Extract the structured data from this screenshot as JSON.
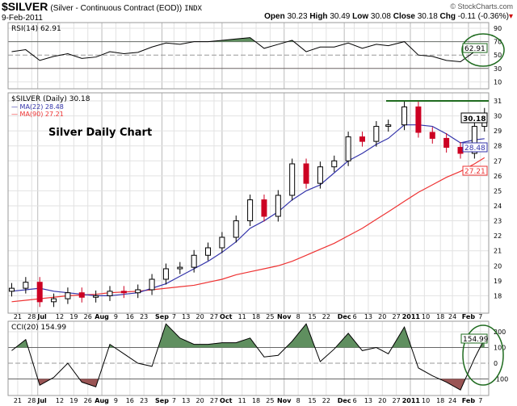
{
  "header": {
    "symbol": "$SILVER",
    "description": "(Silver - Continuous Contract (EOD))",
    "exchange": "INDX",
    "date": "9-Feb-2011",
    "watermark": "© StockCharts.com",
    "open_label": "Open",
    "open": "30.23",
    "high_label": "High",
    "high": "30.49",
    "low_label": "Low",
    "low": "30.08",
    "close_label": "Close",
    "close": "30.18",
    "chg_label": "Chg",
    "chg": "-0.11 (-0.36%)"
  },
  "colors": {
    "up": "#000000",
    "down": "#cc0022",
    "ma22": "#3333aa",
    "ma90": "#ee3333",
    "fill_pos": "#5f8f5f",
    "fill_neg": "#9a5555",
    "annotation": "#1f6b1f"
  },
  "chart_data": [
    {
      "type": "line",
      "title": "RSI(14) 62.91",
      "last_value": "62.91",
      "ylim": [
        0,
        100
      ],
      "yticks": [
        "90",
        "70",
        "50",
        "30",
        "10"
      ],
      "x": [
        "2010-06-18",
        "2010-06-25",
        "2010-07-02",
        "2010-07-09",
        "2010-07-16",
        "2010-07-23",
        "2010-07-30",
        "2010-08-06",
        "2010-08-13",
        "2010-08-20",
        "2010-08-27",
        "2010-09-03",
        "2010-09-10",
        "2010-09-17",
        "2010-09-24",
        "2010-10-01",
        "2010-10-08",
        "2010-10-15",
        "2010-10-22",
        "2010-10-29",
        "2010-11-05",
        "2010-11-12",
        "2010-11-19",
        "2010-11-26",
        "2010-12-03",
        "2010-12-10",
        "2010-12-17",
        "2010-12-23",
        "2010-12-31",
        "2011-01-07",
        "2011-01-14",
        "2011-01-21",
        "2011-01-28",
        "2011-02-04",
        "2011-02-09"
      ],
      "values": [
        55,
        58,
        42,
        48,
        52,
        45,
        47,
        55,
        52,
        54,
        62,
        68,
        66,
        70,
        70,
        72,
        74,
        76,
        60,
        66,
        72,
        55,
        62,
        62,
        68,
        60,
        66,
        64,
        70,
        50,
        48,
        42,
        40,
        55,
        62.91
      ]
    },
    {
      "type": "candlestick",
      "title": "$SILVER (Daily) 30.18",
      "annotation": "Silver Daily Chart",
      "ylim": [
        17,
        31.5
      ],
      "yticks": [
        "31",
        "30",
        "29",
        "28",
        "27",
        "26",
        "25",
        "24",
        "23",
        "22",
        "21",
        "20",
        "19",
        "18"
      ],
      "resistance": 31,
      "x": [
        "2010-06-18",
        "2010-06-25",
        "2010-07-02",
        "2010-07-09",
        "2010-07-16",
        "2010-07-23",
        "2010-07-30",
        "2010-08-06",
        "2010-08-13",
        "2010-08-20",
        "2010-08-27",
        "2010-09-03",
        "2010-09-10",
        "2010-09-17",
        "2010-09-24",
        "2010-10-01",
        "2010-10-08",
        "2010-10-15",
        "2010-10-22",
        "2010-10-29",
        "2010-11-05",
        "2010-11-12",
        "2010-11-19",
        "2010-11-26",
        "2010-12-03",
        "2010-12-10",
        "2010-12-17",
        "2010-12-23",
        "2010-12-31",
        "2011-01-07",
        "2011-01-14",
        "2011-01-21",
        "2011-01-28",
        "2011-02-04",
        "2011-02-09"
      ],
      "close": [
        18.5,
        18.9,
        17.6,
        17.8,
        18.2,
        17.9,
        18.0,
        18.3,
        18.2,
        18.4,
        19.1,
        19.8,
        19.9,
        20.7,
        21.2,
        21.9,
        23.0,
        24.4,
        23.3,
        24.7,
        26.8,
        25.5,
        26.6,
        27.0,
        28.6,
        28.3,
        29.3,
        29.4,
        30.6,
        28.9,
        28.5,
        27.9,
        27.5,
        29.3,
        30.18
      ],
      "series": [
        {
          "name": "MA(22)",
          "last": "28.48",
          "values": [
            18.3,
            18.4,
            18.5,
            18.3,
            18.2,
            18.1,
            18.0,
            18.0,
            18.1,
            18.2,
            18.5,
            18.8,
            19.3,
            19.8,
            20.3,
            20.9,
            21.6,
            22.5,
            23.0,
            23.6,
            24.4,
            25.0,
            25.4,
            26.2,
            27.0,
            27.5,
            28.1,
            28.5,
            29.4,
            29.4,
            29.3,
            28.8,
            28.2,
            28.4,
            28.48
          ]
        },
        {
          "name": "MA(90)",
          "last": "27.21",
          "values": [
            17.6,
            17.7,
            17.8,
            17.9,
            18.0,
            18.05,
            18.1,
            18.2,
            18.25,
            18.3,
            18.4,
            18.5,
            18.6,
            18.7,
            18.9,
            19.1,
            19.4,
            19.6,
            19.8,
            20.0,
            20.3,
            20.7,
            21.1,
            21.5,
            22.0,
            22.5,
            23.1,
            23.6,
            24.3,
            24.9,
            25.4,
            25.9,
            26.3,
            26.8,
            27.21
          ]
        }
      ],
      "last_close": "30.18"
    },
    {
      "type": "line",
      "title": "CCI(20) 154.99",
      "last_value": "154.99",
      "yticks": [
        "200",
        "100",
        "0",
        "-100"
      ],
      "x": [
        "2010-06-18",
        "2010-06-25",
        "2010-07-02",
        "2010-07-09",
        "2010-07-16",
        "2010-07-23",
        "2010-07-30",
        "2010-08-06",
        "2010-08-13",
        "2010-08-20",
        "2010-08-27",
        "2010-09-03",
        "2010-09-10",
        "2010-09-17",
        "2010-09-24",
        "2010-10-01",
        "2010-10-08",
        "2010-10-15",
        "2010-10-22",
        "2010-10-29",
        "2010-11-05",
        "2010-11-12",
        "2010-11-19",
        "2010-11-26",
        "2010-12-03",
        "2010-12-10",
        "2010-12-17",
        "2010-12-23",
        "2010-12-31",
        "2011-01-07",
        "2011-01-14",
        "2011-01-21",
        "2011-01-28",
        "2011-02-04",
        "2011-02-09"
      ],
      "values": [
        80,
        150,
        -140,
        -90,
        0,
        -120,
        -150,
        120,
        60,
        0,
        -20,
        250,
        160,
        120,
        120,
        130,
        130,
        160,
        40,
        50,
        140,
        250,
        10,
        90,
        190,
        80,
        100,
        60,
        230,
        -30,
        -80,
        -120,
        -170,
        30,
        154.99
      ]
    }
  ],
  "xticks": [
    {
      "label": "21",
      "date": "2010-06-21",
      "bold": false
    },
    {
      "label": "28",
      "date": "2010-06-28",
      "bold": false
    },
    {
      "label": "Jul",
      "date": "2010-07-01",
      "bold": true
    },
    {
      "label": "12",
      "date": "2010-07-12",
      "bold": false
    },
    {
      "label": "19",
      "date": "2010-07-19",
      "bold": false
    },
    {
      "label": "26",
      "date": "2010-07-26",
      "bold": false
    },
    {
      "label": "Aug",
      "date": "2010-08-02",
      "bold": true
    },
    {
      "label": "9",
      "date": "2010-08-09",
      "bold": false
    },
    {
      "label": "16",
      "date": "2010-08-16",
      "bold": false
    },
    {
      "label": "23",
      "date": "2010-08-23",
      "bold": false
    },
    {
      "label": "Sep",
      "date": "2010-09-01",
      "bold": true
    },
    {
      "label": "7",
      "date": "2010-09-07",
      "bold": false
    },
    {
      "label": "13",
      "date": "2010-09-13",
      "bold": false
    },
    {
      "label": "20",
      "date": "2010-09-20",
      "bold": false
    },
    {
      "label": "27",
      "date": "2010-09-27",
      "bold": false
    },
    {
      "label": "Oct",
      "date": "2010-10-01",
      "bold": true
    },
    {
      "label": "11",
      "date": "2010-10-11",
      "bold": false
    },
    {
      "label": "18",
      "date": "2010-10-18",
      "bold": false
    },
    {
      "label": "25",
      "date": "2010-10-25",
      "bold": false
    },
    {
      "label": "Nov",
      "date": "2010-11-01",
      "bold": true
    },
    {
      "label": "8",
      "date": "2010-11-08",
      "bold": false
    },
    {
      "label": "15",
      "date": "2010-11-15",
      "bold": false
    },
    {
      "label": "22",
      "date": "2010-11-22",
      "bold": false
    },
    {
      "label": "Dec",
      "date": "2010-12-01",
      "bold": true
    },
    {
      "label": "6",
      "date": "2010-12-06",
      "bold": false
    },
    {
      "label": "13",
      "date": "2010-12-13",
      "bold": false
    },
    {
      "label": "20",
      "date": "2010-12-20",
      "bold": false
    },
    {
      "label": "27",
      "date": "2010-12-27",
      "bold": false
    },
    {
      "label": "2011",
      "date": "2011-01-03",
      "bold": true
    },
    {
      "label": "10",
      "date": "2011-01-10",
      "bold": false
    },
    {
      "label": "18",
      "date": "2011-01-18",
      "bold": false
    },
    {
      "label": "24",
      "date": "2011-01-24",
      "bold": false
    },
    {
      "label": "Feb",
      "date": "2011-02-01",
      "bold": true
    },
    {
      "label": "7",
      "date": "2011-02-07",
      "bold": false
    }
  ]
}
